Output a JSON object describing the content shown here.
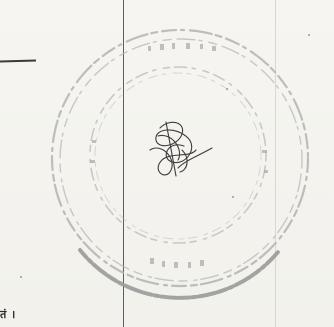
{
  "document": {
    "seal_text": "",
    "signature": "handwritten-signature",
    "bottom_left_fragment": "तं ।"
  },
  "colors": {
    "paper": "#f4f3ef",
    "seal_ink": "#a9a9a9",
    "signature_ink": "#3c3c3c",
    "rule_line": "#5e5e5e"
  }
}
